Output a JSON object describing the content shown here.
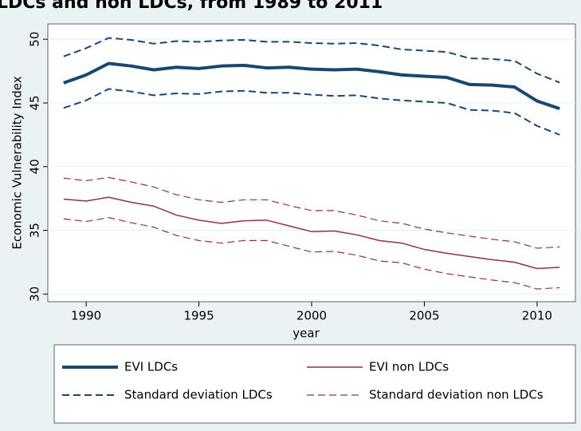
{
  "chart_data": {
    "type": "line",
    "title": "LDCs and non LDCs, from 1989 to 2011",
    "x_label": "year",
    "y_label": "Economic Vulnerability Index",
    "x": [
      1989,
      1990,
      1991,
      1992,
      1993,
      1994,
      1995,
      1996,
      1997,
      1998,
      1999,
      2000,
      2001,
      2002,
      2003,
      2004,
      2005,
      2006,
      2007,
      2008,
      2009,
      2010,
      2011
    ],
    "xlim": [
      1988.3,
      2011.7
    ],
    "xticks": [
      1990,
      1995,
      2000,
      2005,
      2010
    ],
    "ylim": [
      29.4,
      51.2
    ],
    "yticks": [
      30,
      35,
      40,
      45,
      50
    ],
    "grid": true,
    "series": [
      {
        "name": "EVI LDCs",
        "color": "#1a476f",
        "style": "solid",
        "width": 4,
        "values": [
          46.57,
          47.2,
          48.1,
          47.9,
          47.6,
          47.8,
          47.7,
          47.9,
          47.95,
          47.75,
          47.8,
          47.65,
          47.6,
          47.65,
          47.45,
          47.2,
          47.1,
          47.0,
          46.45,
          46.4,
          46.25,
          45.15,
          44.55
        ]
      },
      {
        "name": "EVI non LDCs",
        "color": "#90353b",
        "style": "solid",
        "width": 1.5,
        "values": [
          37.45,
          37.3,
          37.6,
          37.2,
          36.9,
          36.2,
          35.8,
          35.55,
          35.75,
          35.8,
          35.35,
          34.9,
          34.95,
          34.65,
          34.2,
          34.0,
          33.5,
          33.2,
          32.95,
          32.7,
          32.5,
          32.0,
          32.1
        ]
      },
      {
        "name": "Standard deviation LDCs",
        "color": "#1a476f",
        "style": "dashed",
        "width": 2,
        "values": [
          48.65,
          49.3,
          50.1,
          49.95,
          49.65,
          49.85,
          49.8,
          49.9,
          49.95,
          49.8,
          49.8,
          49.7,
          49.65,
          49.7,
          49.5,
          49.2,
          49.1,
          49.0,
          48.5,
          48.45,
          48.3,
          47.3,
          46.6
        ]
      },
      {
        "name": "Standard deviation non LDCs",
        "color": "#90353b",
        "style": "dashed",
        "width": 1.2,
        "values": [
          39.1,
          38.9,
          39.15,
          38.8,
          38.4,
          37.8,
          37.4,
          37.2,
          37.4,
          37.4,
          36.95,
          36.55,
          36.55,
          36.2,
          35.75,
          35.55,
          35.1,
          34.8,
          34.55,
          34.3,
          34.1,
          33.6,
          33.7
        ]
      }
    ],
    "extra_series": [
      {
        "name": "Standard deviation LDCs lower",
        "values": [
          44.6,
          45.2,
          46.1,
          45.9,
          45.6,
          45.75,
          45.7,
          45.9,
          45.95,
          45.8,
          45.8,
          45.65,
          45.55,
          45.6,
          45.35,
          45.2,
          45.1,
          45.0,
          44.45,
          44.4,
          44.2,
          43.2,
          42.5
        ]
      },
      {
        "name": "Standard deviation non LDCs lower",
        "values": [
          35.9,
          35.7,
          36.0,
          35.6,
          35.25,
          34.6,
          34.2,
          34.0,
          34.2,
          34.2,
          33.75,
          33.3,
          33.35,
          33.05,
          32.6,
          32.45,
          31.95,
          31.6,
          31.35,
          31.1,
          30.9,
          30.4,
          30.5
        ]
      }
    ]
  }
}
